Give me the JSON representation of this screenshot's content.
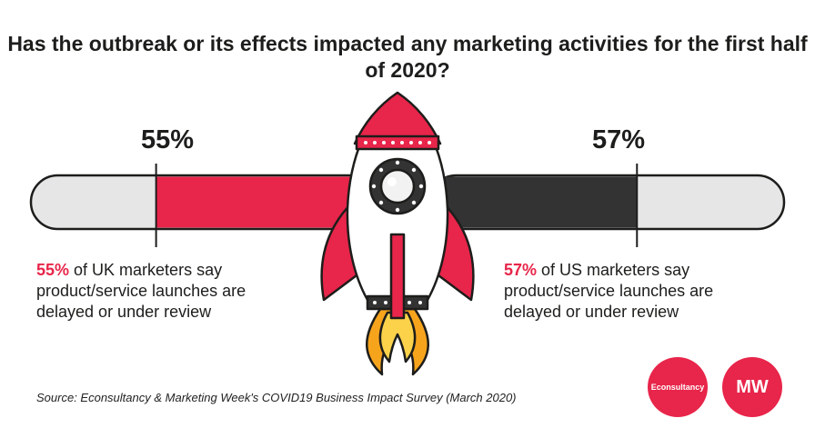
{
  "title": "Has the outbreak or its effects impacted any marketing activities for the first half of 2020?",
  "colors": {
    "uk": "#e8254a",
    "us": "#333333",
    "track": "#e6e6e6",
    "accent": "#e8254a"
  },
  "chart_data": {
    "type": "bar",
    "categories": [
      "UK",
      "US"
    ],
    "values": [
      55,
      57
    ],
    "value_labels": [
      "55%",
      "57%"
    ],
    "ylim": [
      0,
      100
    ]
  },
  "uk": {
    "pct_text": "55%",
    "highlight": "55%",
    "desc_line1": " of UK marketers say",
    "desc_line2": "product/service launches are",
    "desc_line3": "delayed or under review"
  },
  "us": {
    "pct_text": "57%",
    "highlight": "57%",
    "desc_line1": " of US marketers say",
    "desc_line2": "product/service launches are",
    "desc_line3": "delayed or under review"
  },
  "source": "Source: Econsultancy & Marketing Week's COVID19 Business Impact Survey (March 2020)",
  "logos": {
    "econsultancy": "Econsultancy",
    "mw": "MW"
  }
}
